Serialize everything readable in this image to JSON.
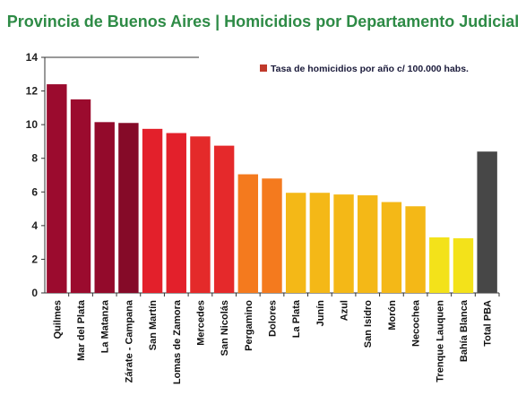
{
  "title": "Provincia de Buenos Aires | Homicidios por Departamento Judicial",
  "chart_data": {
    "type": "bar",
    "title": "Provincia de Buenos Aires | Homicidios por Departamento Judicial",
    "xlabel": "",
    "ylabel": "",
    "ylim": [
      0,
      14
    ],
    "yticks": [
      0,
      2,
      4,
      6,
      8,
      10,
      12,
      14
    ],
    "grid": false,
    "legend_position": "top-right",
    "categories": [
      "Quilmes",
      "Mar del Plata",
      "La Matanza",
      "Zárate - Campana",
      "San Martín",
      "Lomas de Zamora",
      "Mercedes",
      "San Nicolás",
      "Pergamino",
      "Dolores",
      "La Plata",
      "Junín",
      "Azul",
      "San Isidro",
      "Morón",
      "Necochea",
      "Trenque Lauquen",
      "Bahía Blanca",
      "Total PBA"
    ],
    "series": [
      {
        "name": "Tasa de homicidios por año c/ 100.000 habs.",
        "color": "#c0392b",
        "values": [
          12.4,
          11.5,
          10.15,
          10.1,
          9.75,
          9.5,
          9.3,
          8.75,
          7.05,
          6.8,
          5.95,
          5.95,
          5.85,
          5.8,
          5.4,
          5.15,
          3.3,
          3.25,
          8.4
        ]
      }
    ],
    "bar_colors": [
      "#9b0b2e",
      "#9b0b2e",
      "#930a2b",
      "#850a28",
      "#e3202b",
      "#e3202b",
      "#e42a2a",
      "#e5292b",
      "#f47a1e",
      "#f47a1e",
      "#f4b817",
      "#f4b817",
      "#f4b817",
      "#f4b817",
      "#f4b817",
      "#f4b817",
      "#f3e21a",
      "#f3e21a",
      "#474747"
    ]
  }
}
